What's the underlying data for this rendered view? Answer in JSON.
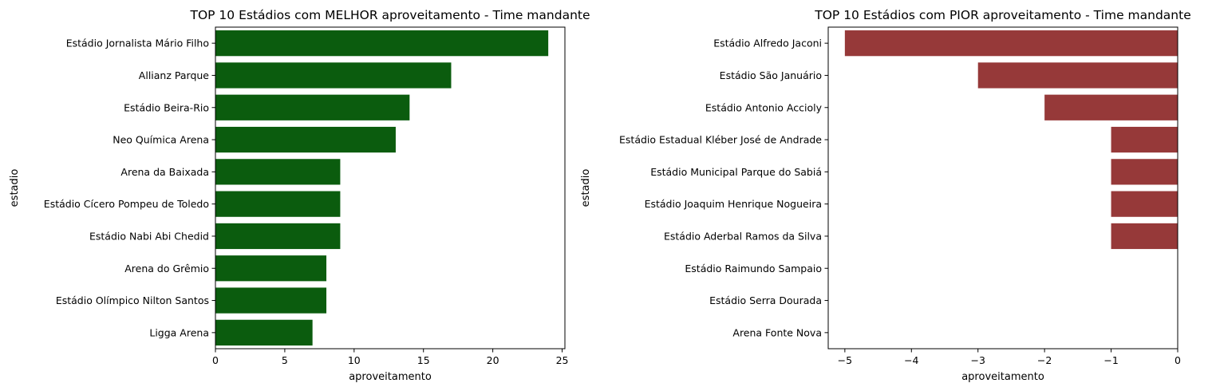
{
  "chart_data": [
    {
      "type": "bar",
      "orientation": "horizontal",
      "title": "TOP 10 Estádios com MELHOR aproveitamento - Time mandante",
      "xlabel": "aproveitamento",
      "ylabel": "estadio",
      "xlim": [
        0,
        25.2
      ],
      "xticks": [
        0,
        5,
        10,
        15,
        20,
        25
      ],
      "xtick_labels": [
        "0",
        "5",
        "10",
        "15",
        "20",
        "25"
      ],
      "color": "#0b5c0e",
      "categories": [
        "Estádio Jornalista Mário Filho",
        "Allianz Parque",
        "Estádio Beira-Rio",
        "Neo Química Arena ",
        "Arena da Baixada",
        "Estádio Cícero Pompeu de Toledo",
        "Estádio Nabi Abi Chedid",
        "Arena do Grêmio",
        "Estádio Olímpico Nilton Santos",
        "Ligga Arena"
      ],
      "values": [
        24,
        17,
        14,
        13,
        9,
        9,
        9,
        8,
        8,
        7
      ]
    },
    {
      "type": "bar",
      "orientation": "horizontal",
      "title": "TOP 10 Estádios com PIOR aproveitamento - Time mandante",
      "xlabel": "aproveitamento",
      "ylabel": "estadio",
      "xlim": [
        -5.25,
        0
      ],
      "xticks": [
        -5,
        -4,
        -3,
        -2,
        -1,
        0
      ],
      "xtick_labels": [
        "−5",
        "−4",
        "−3",
        "−2",
        "−1",
        "0"
      ],
      "color": "#963939",
      "categories": [
        "Estádio Alfredo Jaconi ",
        "Estádio São Januário",
        "Estádio Antonio Accioly",
        "Estádio Estadual Kléber José de Andrade",
        "Estádio Municipal Parque do Sabiá",
        "Estádio Joaquim Henrique Nogueira",
        "Estádio Aderbal Ramos da Silva",
        "Estádio Raimundo Sampaio",
        "Estádio Serra Dourada",
        "Arena Fonte Nova"
      ],
      "values": [
        -5,
        -3,
        -2,
        -1,
        -1,
        -1,
        -1,
        0,
        0,
        0
      ]
    }
  ]
}
